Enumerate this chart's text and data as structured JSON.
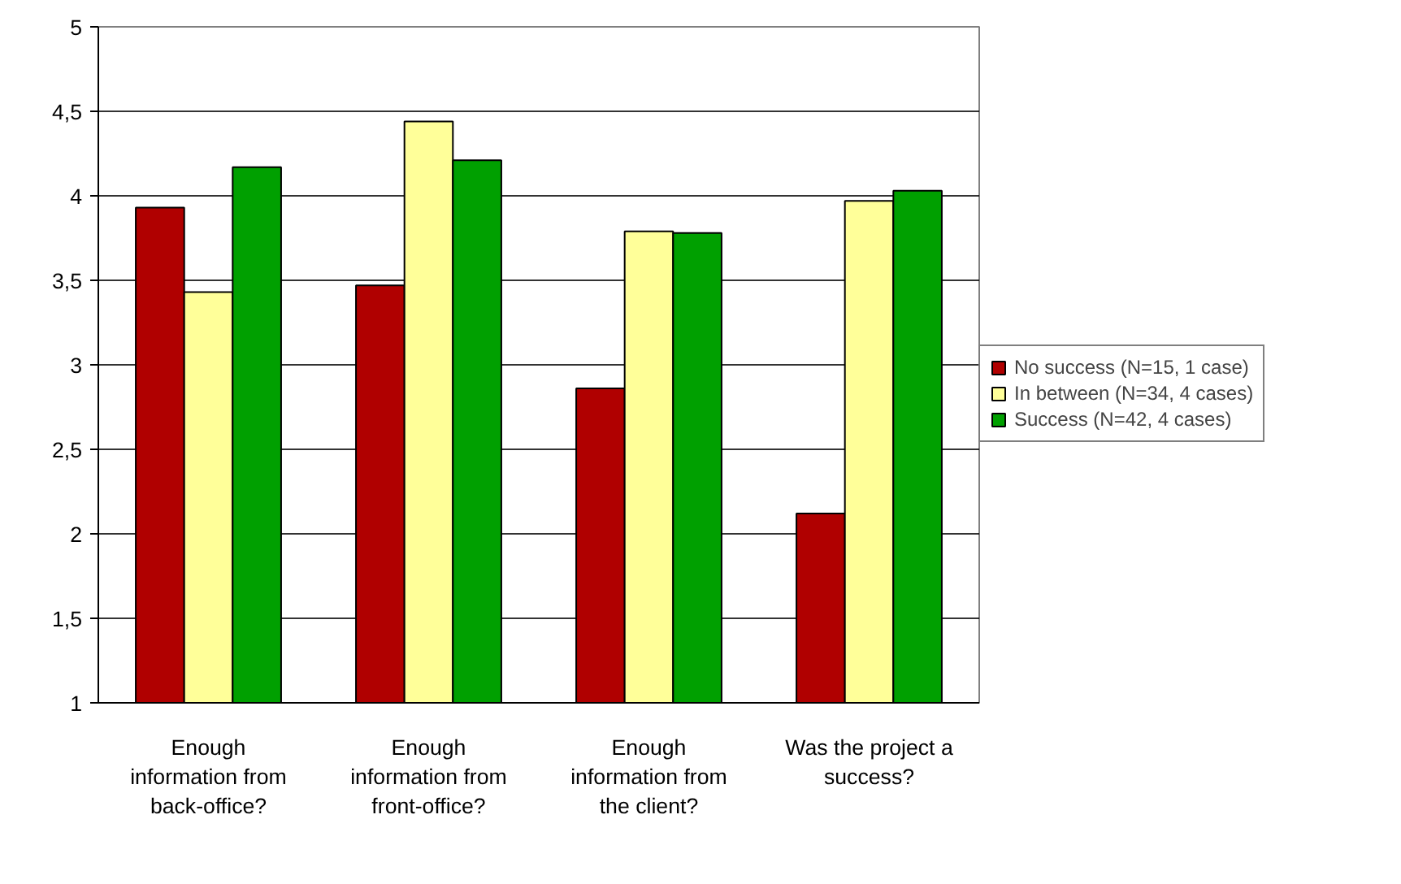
{
  "chart_data": {
    "type": "bar",
    "categories": [
      "Enough information from back-office?",
      "Enough information from front-office?",
      "Enough information from the client?",
      "Was the project a success?"
    ],
    "series": [
      {
        "name": "No success (N=15, 1 case)",
        "color": "#b00000",
        "values": [
          3.93,
          3.47,
          2.86,
          2.12
        ]
      },
      {
        "name": "In between (N=34, 4 cases)",
        "color": "#ffff99",
        "values": [
          3.43,
          4.44,
          3.79,
          3.97
        ]
      },
      {
        "name": "Success (N=42, 4 cases)",
        "color": "#00a000",
        "values": [
          4.17,
          4.21,
          3.78,
          4.03
        ]
      }
    ],
    "ylim": [
      1,
      5
    ],
    "yticks": [
      1,
      {
        "value": 1.5,
        "label": "1,5"
      },
      2,
      {
        "value": 2.5,
        "label": "2,5"
      },
      3,
      {
        "value": 3.5,
        "label": "3,5"
      },
      4,
      {
        "value": 4.5,
        "label": "4,5"
      },
      5
    ],
    "grid": "y",
    "legend": "right"
  }
}
